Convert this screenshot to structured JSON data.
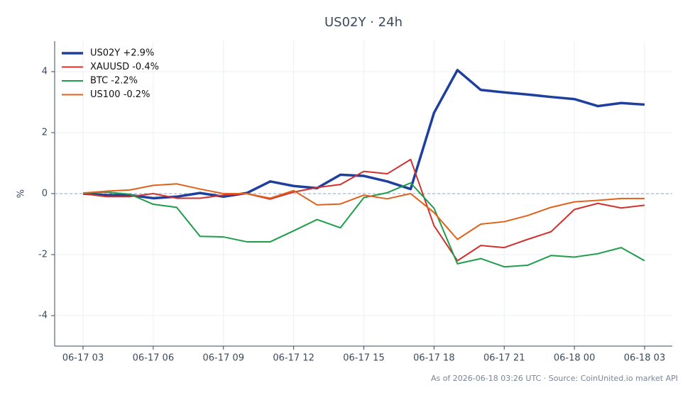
{
  "chart_data": {
    "type": "line",
    "title": "US02Y · 24h",
    "ylabel": "%",
    "footer": "As of 2026-06-18 03:26 UTC · Source: CoinUnited.io market API",
    "x": [
      "06-17 03",
      "06-17 04",
      "06-17 05",
      "06-17 06",
      "06-17 07",
      "06-17 08",
      "06-17 09",
      "06-17 10",
      "06-17 11",
      "06-17 12",
      "06-17 13",
      "06-17 14",
      "06-17 15",
      "06-17 16",
      "06-17 17",
      "06-17 18",
      "06-17 19",
      "06-17 20",
      "06-17 21",
      "06-17 22",
      "06-17 23",
      "06-18 00",
      "06-18 01",
      "06-18 02",
      "06-18 03"
    ],
    "xticks": [
      "06-17 03",
      "06-17 06",
      "06-17 09",
      "06-17 12",
      "06-17 15",
      "06-17 18",
      "06-17 21",
      "06-18 00",
      "06-18 03"
    ],
    "ylim": [
      -5,
      5
    ],
    "yticks": [
      -4,
      -2,
      0,
      2,
      4
    ],
    "grid": true,
    "reference_line": 0,
    "legend": "upper left",
    "series": [
      {
        "name": "US02Y +2.9%",
        "color": "#1f3f9e",
        "values": [
          0,
          -0.05,
          -0.05,
          -0.15,
          -0.1,
          0.02,
          -0.1,
          0.02,
          0.4,
          0.25,
          0.18,
          0.62,
          0.58,
          0.4,
          0.15,
          2.65,
          4.05,
          3.4,
          3.32,
          3.25,
          3.17,
          3.1,
          2.87,
          2.97,
          2.92
        ]
      },
      {
        "name": "XAUUSD -0.4%",
        "color": "#d0312d",
        "values": [
          0,
          -0.1,
          -0.1,
          0,
          -0.15,
          -0.15,
          -0.05,
          0,
          -0.18,
          0.05,
          0.2,
          0.3,
          0.73,
          0.65,
          1.12,
          -1.05,
          -2.2,
          -1.7,
          -1.77,
          -1.5,
          -1.25,
          -0.52,
          -0.32,
          -0.47,
          -0.38
        ]
      },
      {
        "name": "BTC -2.2%",
        "color": "#1e9e4a",
        "values": [
          0.02,
          0.05,
          -0.02,
          -0.35,
          -0.45,
          -1.4,
          -1.42,
          -1.58,
          -1.58,
          -1.22,
          -0.85,
          -1.12,
          -0.13,
          0.03,
          0.35,
          -0.48,
          -2.3,
          -2.13,
          -2.4,
          -2.35,
          -2.03,
          -2.08,
          -1.97,
          -1.77,
          -2.2
        ]
      },
      {
        "name": "US100 -0.2%",
        "color": "#e0621a",
        "values": [
          0.02,
          0.08,
          0.12,
          0.27,
          0.32,
          0.15,
          0,
          0,
          -0.15,
          0.1,
          -0.37,
          -0.34,
          -0.05,
          -0.17,
          0,
          -0.62,
          -1.5,
          -1.0,
          -0.92,
          -0.72,
          -0.45,
          -0.27,
          -0.22,
          -0.16,
          -0.16
        ]
      }
    ]
  }
}
